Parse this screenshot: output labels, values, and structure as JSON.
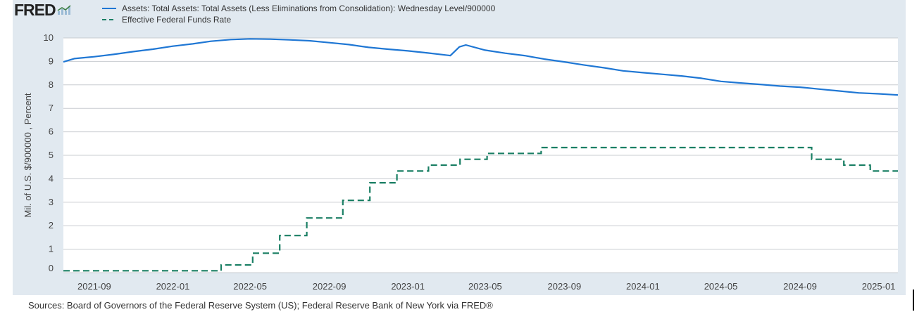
{
  "brand": {
    "logo_text": "FRED",
    "logo_icon": "chart-line-icon"
  },
  "sources": "Sources: Board of Governors of the Federal Reserve System (US); Federal Reserve Bank of New York via FRED®",
  "colors": {
    "assets": "#1f77d4",
    "rate": "#1a7f64",
    "background": "#e1e9f0",
    "plot": "#ffffff",
    "grid": "#c8ccd0"
  },
  "chart_data": {
    "type": "line",
    "title": "",
    "xlabel": "",
    "ylabel": "Mil. of U.S. $/900000 , Percent",
    "ylim": [
      0,
      10
    ],
    "xlim": [
      "2021-07-15",
      "2025-01-31"
    ],
    "y_ticks": [
      "0",
      "1",
      "2",
      "3",
      "4",
      "5",
      "6",
      "7",
      "8",
      "9",
      "10"
    ],
    "x_ticks": [
      {
        "label": "2021-09",
        "date": "2021-09-01"
      },
      {
        "label": "2022-01",
        "date": "2022-01-01"
      },
      {
        "label": "2022-05",
        "date": "2022-05-01"
      },
      {
        "label": "2022-09",
        "date": "2022-09-01"
      },
      {
        "label": "2023-01",
        "date": "2023-01-01"
      },
      {
        "label": "2023-05",
        "date": "2023-05-01"
      },
      {
        "label": "2023-09",
        "date": "2023-09-01"
      },
      {
        "label": "2024-01",
        "date": "2024-01-01"
      },
      {
        "label": "2024-05",
        "date": "2024-05-01"
      },
      {
        "label": "2024-09",
        "date": "2024-09-01"
      },
      {
        "label": "2025-01",
        "date": "2025-01-01"
      }
    ],
    "grid": true,
    "legend_position": "top-left",
    "series": [
      {
        "name": "Assets: Total Assets: Total Assets (Less Eliminations from Consolidation): Wednesday Level/900000",
        "style": "solid",
        "points": [
          [
            "2021-07-15",
            8.98
          ],
          [
            "2021-08-01",
            9.12
          ],
          [
            "2021-09-01",
            9.2
          ],
          [
            "2021-10-01",
            9.3
          ],
          [
            "2021-11-01",
            9.42
          ],
          [
            "2021-12-01",
            9.52
          ],
          [
            "2022-01-01",
            9.65
          ],
          [
            "2022-02-01",
            9.75
          ],
          [
            "2022-03-01",
            9.86
          ],
          [
            "2022-04-01",
            9.93
          ],
          [
            "2022-05-01",
            9.96
          ],
          [
            "2022-06-01",
            9.95
          ],
          [
            "2022-07-01",
            9.92
          ],
          [
            "2022-08-01",
            9.88
          ],
          [
            "2022-09-01",
            9.8
          ],
          [
            "2022-10-01",
            9.72
          ],
          [
            "2022-11-01",
            9.6
          ],
          [
            "2022-12-01",
            9.52
          ],
          [
            "2023-01-01",
            9.45
          ],
          [
            "2023-02-01",
            9.36
          ],
          [
            "2023-03-08",
            9.25
          ],
          [
            "2023-03-22",
            9.62
          ],
          [
            "2023-04-01",
            9.7
          ],
          [
            "2023-05-01",
            9.48
          ],
          [
            "2023-06-01",
            9.35
          ],
          [
            "2023-07-01",
            9.25
          ],
          [
            "2023-08-01",
            9.1
          ],
          [
            "2023-09-01",
            8.98
          ],
          [
            "2023-10-01",
            8.85
          ],
          [
            "2023-11-01",
            8.73
          ],
          [
            "2023-12-01",
            8.6
          ],
          [
            "2024-01-01",
            8.52
          ],
          [
            "2024-02-01",
            8.45
          ],
          [
            "2024-03-01",
            8.38
          ],
          [
            "2024-04-01",
            8.28
          ],
          [
            "2024-05-01",
            8.15
          ],
          [
            "2024-06-01",
            8.08
          ],
          [
            "2024-07-01",
            8.02
          ],
          [
            "2024-08-01",
            7.95
          ],
          [
            "2024-09-01",
            7.9
          ],
          [
            "2024-10-01",
            7.82
          ],
          [
            "2024-11-01",
            7.74
          ],
          [
            "2024-12-01",
            7.66
          ],
          [
            "2025-01-01",
            7.62
          ],
          [
            "2025-01-31",
            7.57
          ]
        ]
      },
      {
        "name": "Effective Federal Funds Rate",
        "style": "dashed",
        "steps": [
          [
            "2021-07-15",
            0.08
          ],
          [
            "2022-03-17",
            0.33
          ],
          [
            "2022-05-05",
            0.83
          ],
          [
            "2022-06-16",
            1.58
          ],
          [
            "2022-07-28",
            2.33
          ],
          [
            "2022-09-22",
            3.08
          ],
          [
            "2022-11-03",
            3.83
          ],
          [
            "2022-12-15",
            4.33
          ],
          [
            "2023-02-02",
            4.58
          ],
          [
            "2023-03-23",
            4.83
          ],
          [
            "2023-05-04",
            5.08
          ],
          [
            "2023-07-27",
            5.33
          ],
          [
            "2024-09-19",
            4.83
          ],
          [
            "2024-11-08",
            4.58
          ],
          [
            "2024-12-19",
            4.33
          ]
        ],
        "end": "2025-01-31"
      }
    ]
  }
}
